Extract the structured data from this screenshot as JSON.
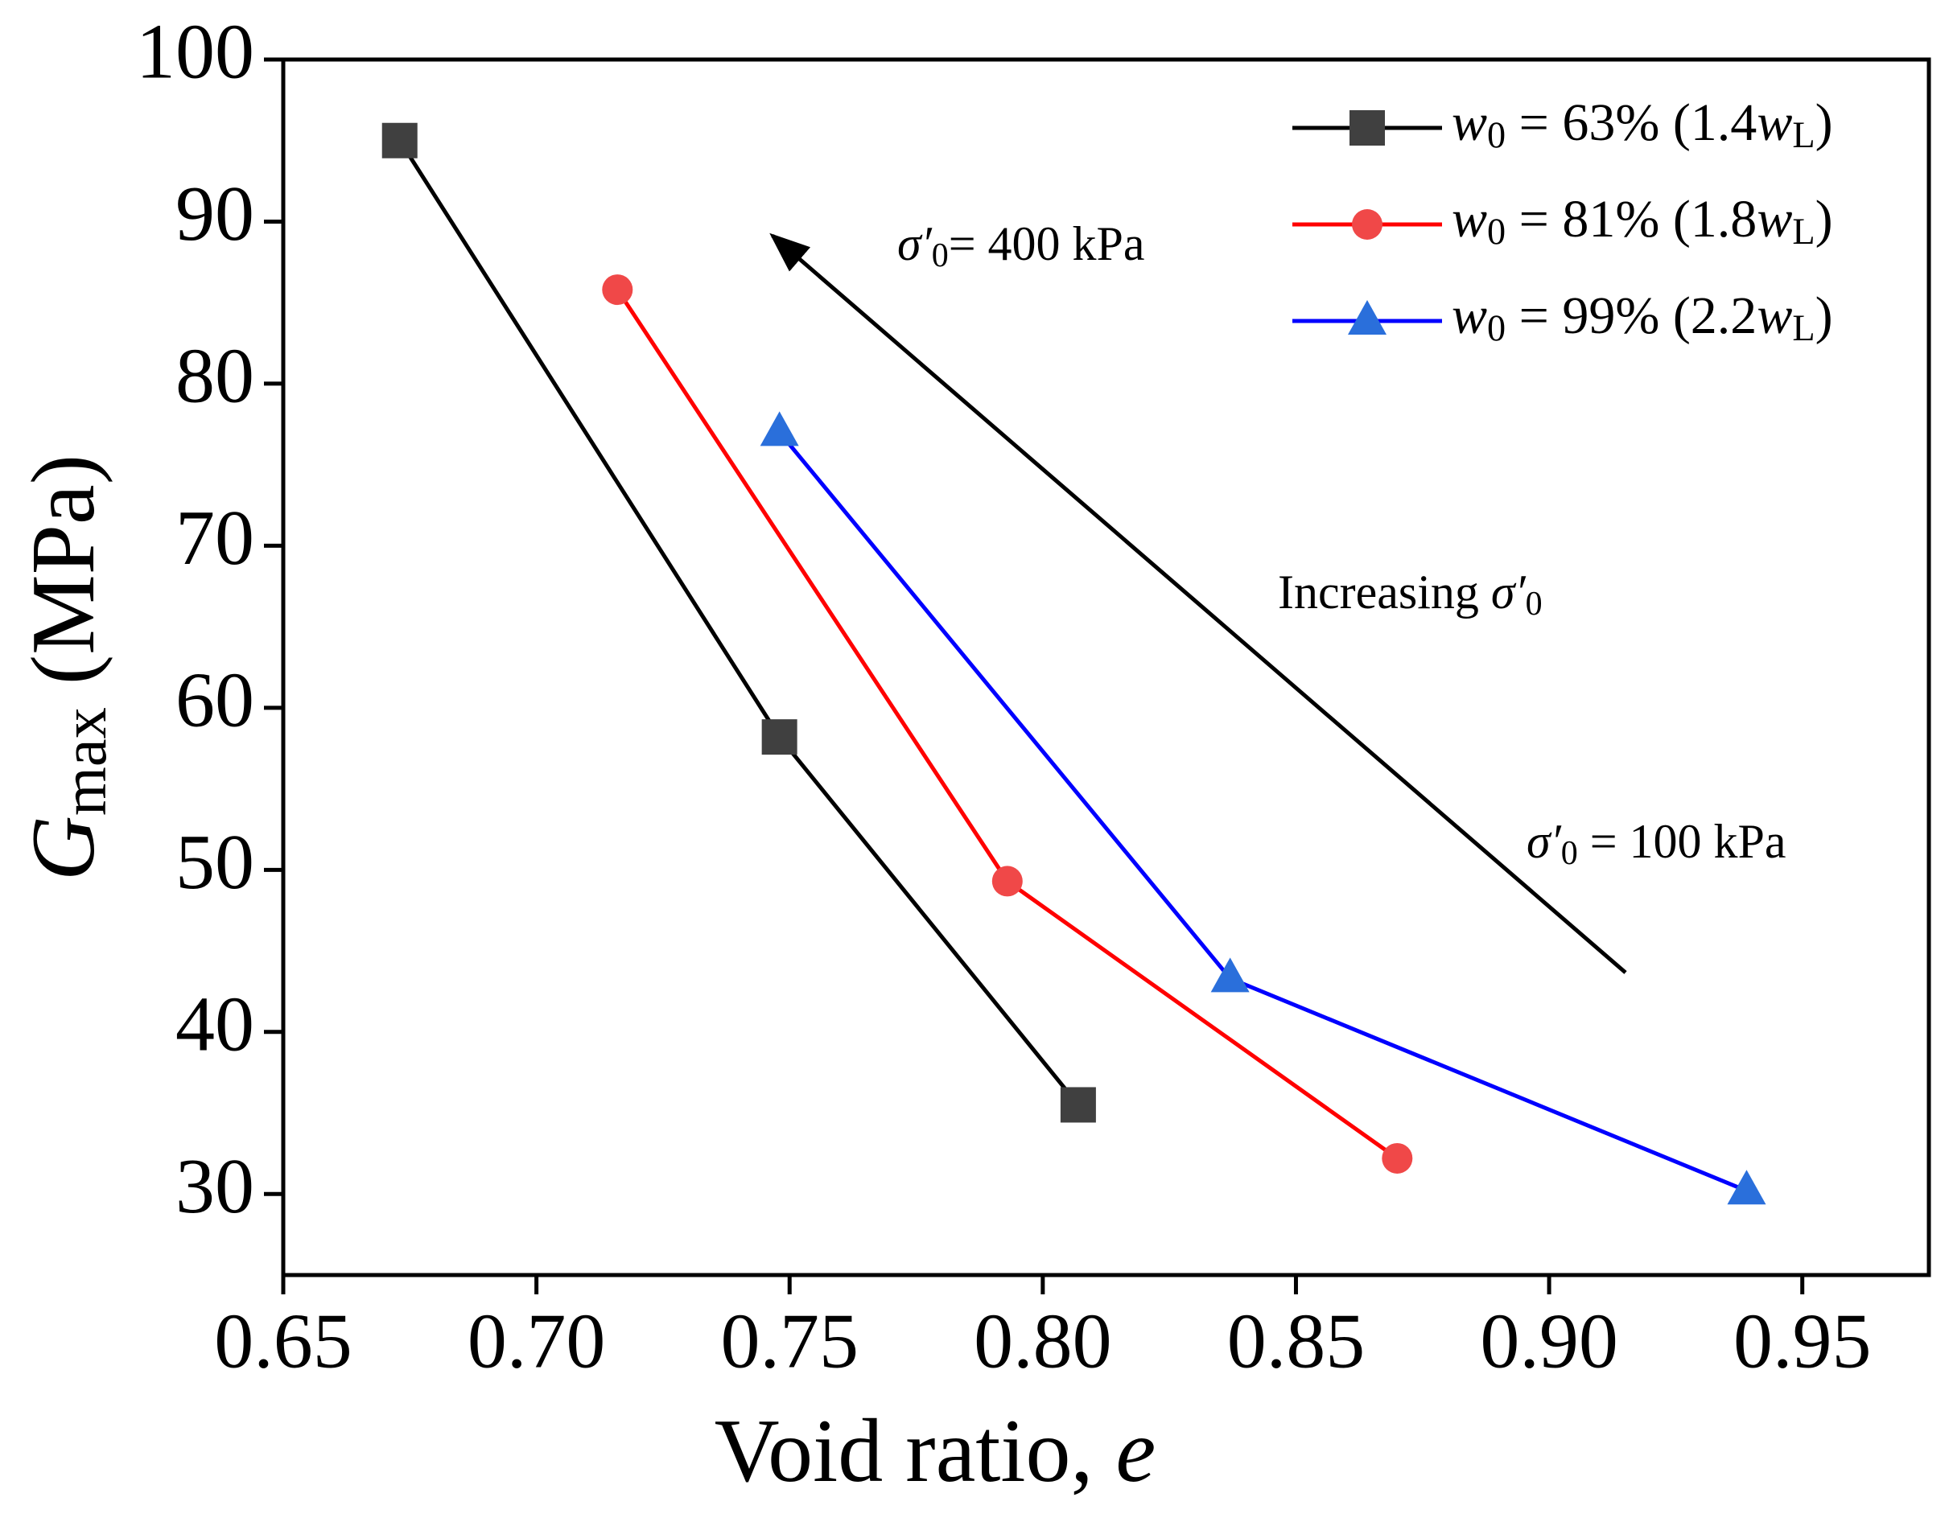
{
  "chart_data": {
    "type": "line",
    "x_label": "Void ratio, e",
    "y_label": "Gmax (MPa)",
    "xlim": [
      0.65,
      0.975
    ],
    "ylim": [
      25,
      100
    ],
    "xticks": [
      0.65,
      {
        "value": 0.7,
        "label": "0.70"
      },
      0.75,
      {
        "value": 0.8,
        "label": "0.80"
      },
      0.85,
      {
        "value": 0.9,
        "label": "0.90"
      },
      0.95
    ],
    "yticks": [
      30,
      40,
      50,
      60,
      70,
      80,
      90,
      100
    ],
    "legend": "top-right",
    "series": [
      {
        "name": "w0 = 63% (1.4wL)",
        "color": "#000000",
        "marker_color": "#404040",
        "marker": "square",
        "x": [
          0.673,
          0.748,
          0.807
        ],
        "values": [
          95,
          58.2,
          35.5
        ]
      },
      {
        "name": "w0 = 81% (1.8wL)",
        "color": "#ff0000",
        "marker_color": "#f04848",
        "marker": "circle",
        "x": [
          0.716,
          0.793,
          0.87
        ],
        "values": [
          85.8,
          49.3,
          32.2
        ]
      },
      {
        "name": "w0 = 99% (2.2wL)",
        "color": "#0000ff",
        "marker_color": "#2a6fdb",
        "marker": "triangle",
        "x": [
          0.748,
          0.837,
          0.939
        ],
        "values": [
          77,
          43.3,
          30.2
        ]
      }
    ],
    "annotations": [
      "σ′0= 400 kPa",
      "Increasing σ′0",
      "σ′0 = 100 kPa"
    ]
  }
}
